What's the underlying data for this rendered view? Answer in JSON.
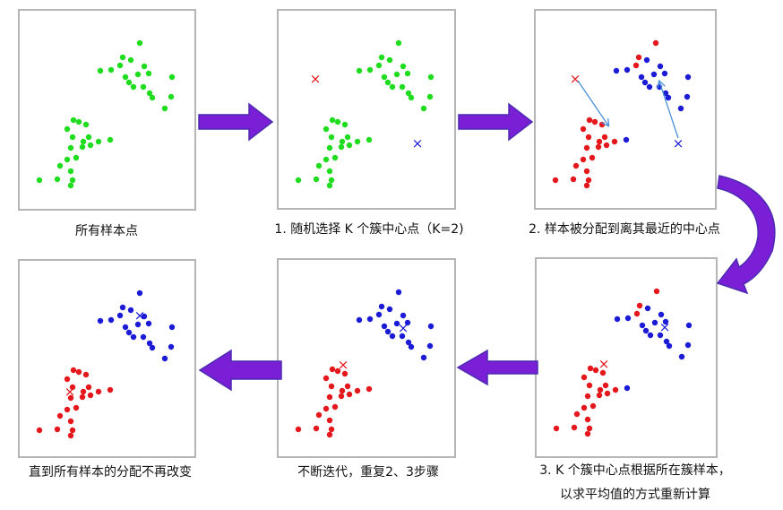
{
  "colors": {
    "green": "#1fdc1f",
    "red": "#e3171c",
    "blue": "#1b1bd6",
    "arrow_fill": "#7a1fd6",
    "arrow_edge": "#4b2bb0",
    "thin_arrow": "#4a8fd8",
    "frame": "#b5b5b5"
  },
  "captions": {
    "step0": "所有样本点",
    "step1": "1. 随机选择 K 个簇中心点（K=2)",
    "step2": "2. 样本被分配到离其最近的中心点",
    "step3_line1": "3. K 个簇中心点根据所在簇样本，",
    "step3_line2": "以求平均值的方式重新计算",
    "step4": "不断迭代，重复2、3步骤",
    "step5": "直到所有样本的分配不再改变"
  },
  "center_marker": "×",
  "icons": [
    "right-arrow",
    "curved-down-arrow",
    "left-arrow",
    "pointer-arrow"
  ]
}
